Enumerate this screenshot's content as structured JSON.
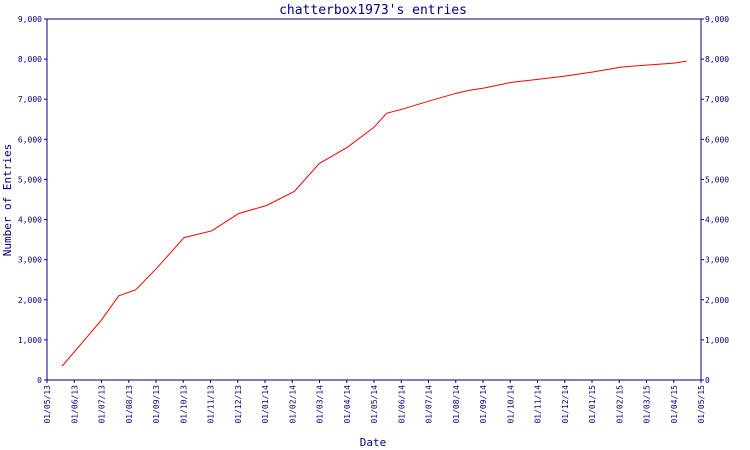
{
  "chart_data": {
    "type": "line",
    "title": "chatterbox1973's entries",
    "xlabel": "Date",
    "ylabel": "Number of Entries",
    "ylim": [
      0,
      9000
    ],
    "yticks": [
      0,
      1000,
      2000,
      3000,
      4000,
      5000,
      6000,
      7000,
      8000,
      9000
    ],
    "ytick_labels": [
      "0",
      "1,000",
      "2,000",
      "3,000",
      "4,000",
      "5,000",
      "6,000",
      "7,000",
      "8,000",
      "9,000"
    ],
    "right_axis": true,
    "xlim": [
      "2013-05-01",
      "2015-05-01"
    ],
    "xtick_labels": [
      "01/05/13",
      "01/06/13",
      "01/07/13",
      "01/08/13",
      "01/09/13",
      "01/10/13",
      "01/11/13",
      "01/12/13",
      "01/01/14",
      "01/02/14",
      "01/03/14",
      "01/04/14",
      "01/05/14",
      "01/06/14",
      "01/07/14",
      "01/08/14",
      "01/09/14",
      "01/10/14",
      "01/11/14",
      "01/12/14",
      "01/01/15",
      "01/02/15",
      "01/03/15",
      "01/04/15",
      "01/05/15"
    ],
    "grid": false,
    "line_color": "#ff0000",
    "axis_color": "#000080",
    "series": [
      {
        "x": [
          "2013-05-18",
          "2013-06-10",
          "2013-07-01",
          "2013-07-20",
          "2013-08-08",
          "2013-09-01",
          "2013-10-01",
          "2013-11-01",
          "2013-12-01",
          "2014-01-01",
          "2014-02-01",
          "2014-03-01",
          "2014-04-01",
          "2014-05-01",
          "2014-05-15",
          "2014-06-01",
          "2014-07-01",
          "2014-08-01",
          "2014-08-15",
          "2014-09-01",
          "2014-10-01",
          "2014-11-01",
          "2014-12-01",
          "2015-01-01",
          "2015-02-01",
          "2015-03-01",
          "2015-04-01",
          "2015-04-15"
        ],
        "y": [
          350,
          950,
          1500,
          2100,
          2250,
          2800,
          3550,
          3720,
          4150,
          4350,
          4700,
          5400,
          5800,
          6300,
          6650,
          6750,
          6950,
          7150,
          7220,
          7280,
          7420,
          7500,
          7580,
          7680,
          7800,
          7850,
          7900,
          7950
        ]
      }
    ]
  }
}
